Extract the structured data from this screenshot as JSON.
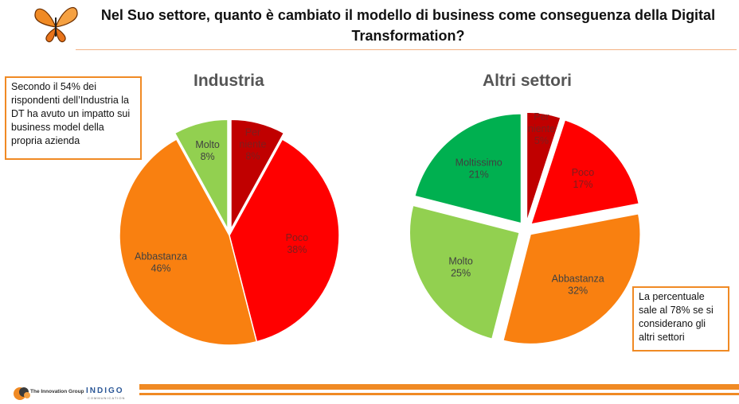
{
  "title": "Nel Suo settore, quanto è cambiato il modello di business come conseguenza della Digital Transformation?",
  "callouts": {
    "left": "Secondo il 54% dei rispondenti dell’Industria la DT ha avuto un impatto sui business model della propria azienda",
    "right": "La percentuale sale al 78% se si considerano gli altri settori"
  },
  "footer": {
    "logo_left": "The Innovation Group",
    "logo_right": "INDIGO",
    "logo_right_sub": "COMMUNICATION"
  },
  "colors": {
    "per_niente": "#c00000",
    "poco": "#ff0000",
    "abbastanza": "#f98010",
    "molto": "#92d050",
    "moltissimo": "#00b050",
    "accent": "#f08a24"
  },
  "chart_data": [
    {
      "type": "pie",
      "title": "Industria",
      "categories": [
        "Per niente",
        "Poco",
        "Abbastanza",
        "Molto"
      ],
      "values": [
        8,
        38,
        46,
        8
      ],
      "value_labels": [
        "8%",
        "38%",
        "46%",
        "8%"
      ],
      "colors": [
        "#c00000",
        "#ff0000",
        "#f98010",
        "#92d050"
      ],
      "exploded": [
        true,
        false,
        false,
        true
      ]
    },
    {
      "type": "pie",
      "title": "Altri settori",
      "categories": [
        "Per niente",
        "Poco",
        "Abbastanza",
        "Molto",
        "Moltissimo"
      ],
      "values": [
        5,
        17,
        32,
        25,
        21
      ],
      "value_labels": [
        "5%",
        "17%",
        "32%",
        "25%",
        "21%"
      ],
      "colors": [
        "#c00000",
        "#ff0000",
        "#f98010",
        "#92d050",
        "#00b050"
      ],
      "exploded": [
        true,
        true,
        true,
        true,
        true
      ]
    }
  ]
}
